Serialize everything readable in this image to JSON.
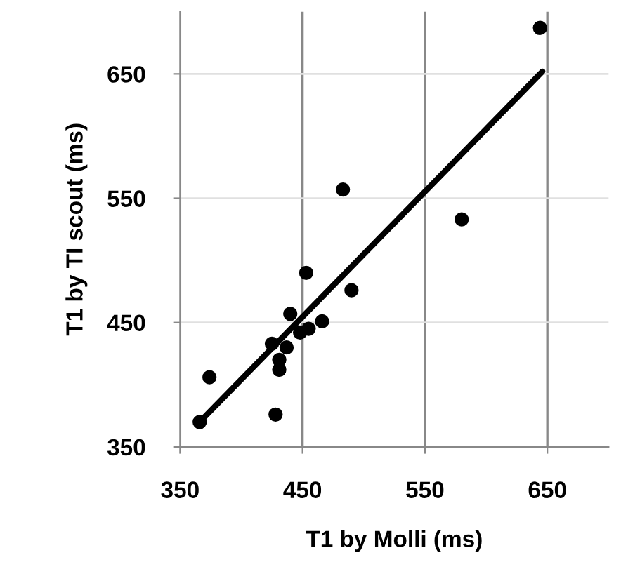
{
  "chart_data": {
    "type": "scatter",
    "xlabel": "T1 by Molli (ms)",
    "ylabel": "T1 by TI scout (ms)",
    "xlim": [
      350,
      700
    ],
    "ylim": [
      350,
      700
    ],
    "xticks": [
      350,
      450,
      550,
      650
    ],
    "yticks": [
      350,
      450,
      550,
      650
    ],
    "grid": true,
    "marker": "circle",
    "series": [
      {
        "color": "#000000",
        "x": [
          366,
          374,
          428,
          425,
          431,
          431,
          437,
          440,
          448,
          455,
          453,
          466,
          490,
          483,
          580,
          644
        ],
        "values": [
          370,
          406,
          376,
          433,
          420,
          412,
          430,
          457,
          442,
          445,
          490,
          451,
          476,
          557,
          533,
          687
        ]
      },
      {
        "type": "line",
        "color": "#000000",
        "marker": "none",
        "x": [
          366,
          646
        ],
        "values": [
          370,
          652
        ]
      }
    ]
  }
}
